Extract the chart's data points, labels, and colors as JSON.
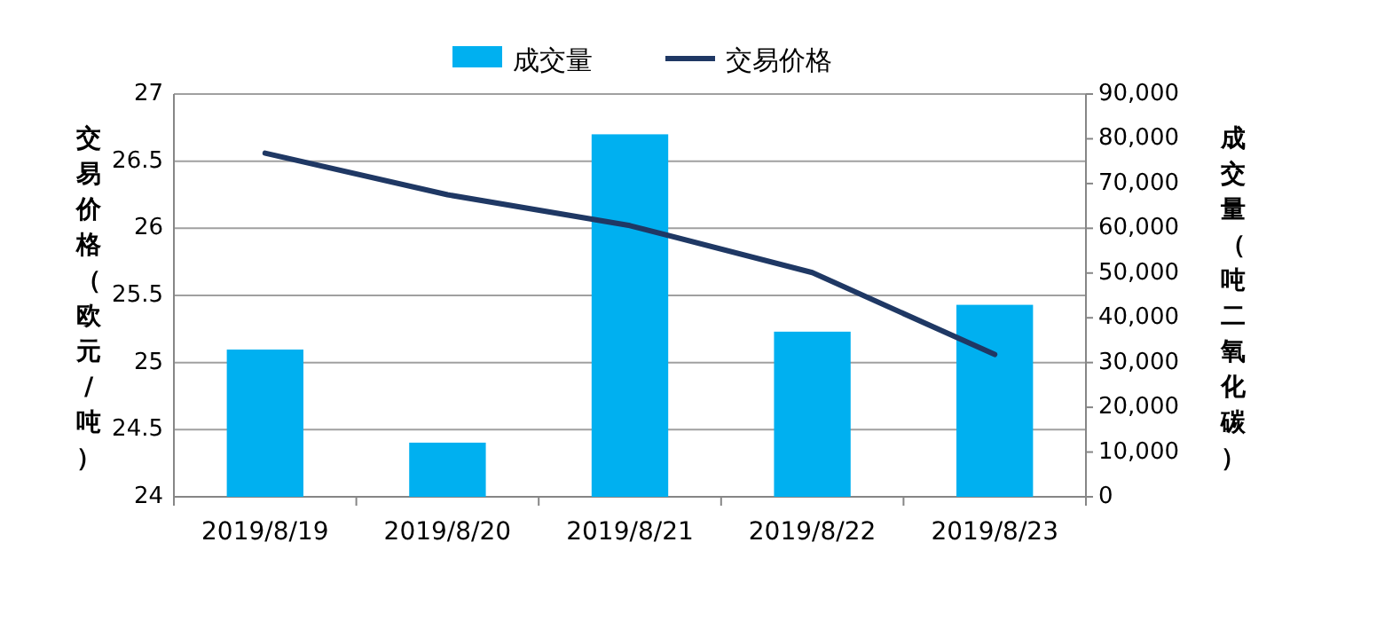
{
  "chart_data": {
    "type": "bar",
    "categories": [
      "2019/8/19",
      "2019/8/20",
      "2019/8/21",
      "2019/8/22",
      "2019/8/23"
    ],
    "series": [
      {
        "name": "成交量",
        "axis": "y2",
        "color": "#00b0f0",
        "values": [
          32900,
          12100,
          81000,
          36900,
          42900
        ]
      },
      {
        "name": "交易价格",
        "type": "line",
        "color": "#1f3864",
        "values": [
          26.56,
          26.25,
          26.02,
          25.67,
          25.06
        ]
      }
    ],
    "ylabel": "交易价格（欧元/吨）",
    "y2label": "成交量（吨二氧化碳）",
    "ylim": [
      24,
      27
    ],
    "yticks": [
      24,
      24.5,
      25,
      25.5,
      26,
      26.5,
      27
    ],
    "y2lim": [
      0,
      90000
    ],
    "y2ticks": [
      {
        "value": 0,
        "label": "0"
      },
      {
        "value": 10000,
        "label": "10,000"
      },
      {
        "value": 20000,
        "label": "20,000"
      },
      {
        "value": 30000,
        "label": "30,000"
      },
      {
        "value": 40000,
        "label": "40,000"
      },
      {
        "value": 50000,
        "label": "50,000"
      },
      {
        "value": 60000,
        "label": "60,000"
      },
      {
        "value": 70000,
        "label": "70,000"
      },
      {
        "value": 80000,
        "label": "80,000"
      },
      {
        "value": 90000,
        "label": "90,000"
      }
    ],
    "grid": "y",
    "legend": "top",
    "marker": "none"
  }
}
